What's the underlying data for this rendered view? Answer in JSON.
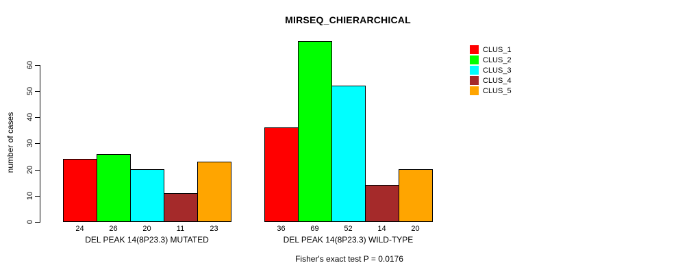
{
  "chart_data": {
    "type": "bar",
    "title": "MIRSEQ_CHIERARCHICAL",
    "ylabel": "number of cases",
    "xlabel": "",
    "y_ticks": [
      0,
      10,
      20,
      30,
      40,
      50,
      60
    ],
    "ylim": [
      0,
      69
    ],
    "grid": false,
    "legend_position": "right",
    "series_names": [
      "CLUS_1",
      "CLUS_2",
      "CLUS_3",
      "CLUS_4",
      "CLUS_5"
    ],
    "colors": [
      "#ff0000",
      "#00ff00",
      "#00ffff",
      "#a52a2a",
      "#ffa500"
    ],
    "categories": [
      "DEL PEAK 14(8P23.3) MUTATED",
      "DEL PEAK 14(8P23.3) WILD-TYPE"
    ],
    "groups": [
      {
        "label": "DEL PEAK 14(8P23.3) MUTATED",
        "values": [
          24,
          26,
          20,
          11,
          23
        ]
      },
      {
        "label": "DEL PEAK 14(8P23.3) WILD-TYPE",
        "values": [
          36,
          69,
          52,
          14,
          20
        ]
      }
    ],
    "bar_value_labels_shown": true,
    "annotation": "Fisher's exact test P = 0.0176"
  }
}
